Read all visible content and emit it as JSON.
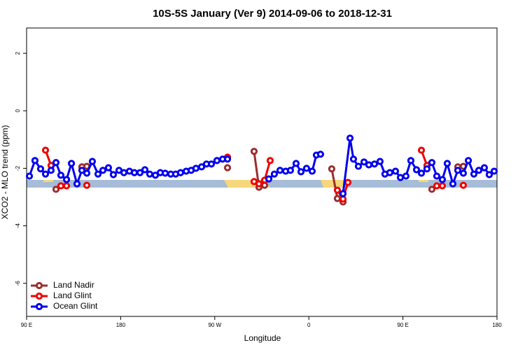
{
  "chart_data": {
    "type": "line",
    "title": "10S-5S January (Ver 9)   2014-09-06 to 2018-12-31",
    "xlabel": "Longitude",
    "ylabel": "XCO2 - MLO trend (ppm)",
    "xlim": [
      90,
      540
    ],
    "ylim": [
      -7.15,
      2.88
    ],
    "xticks": [
      {
        "value": 90,
        "label": "90 E"
      },
      {
        "value": 180,
        "label": "180"
      },
      {
        "value": 270,
        "label": "90 W"
      },
      {
        "value": 360,
        "label": "0"
      },
      {
        "value": 450,
        "label": "90 E"
      },
      {
        "value": 540,
        "label": "180"
      }
    ],
    "yticks": [
      -6,
      -4,
      -2,
      0,
      2
    ],
    "legend": "bottom-left",
    "series": [
      {
        "name": "Land Nadir",
        "color": "#9b2d2d",
        "x": [
          118.1,
          null,
          142.9,
          147.6,
          null,
          282.2,
          null,
          307.6,
          312.3,
          317.7,
          null,
          381.9,
          387.3,
          392.7,
          null,
          477.7,
          null,
          502.5,
          507.8
        ],
        "values": [
          -2.73,
          null,
          -1.95,
          -1.93,
          null,
          -1.98,
          null,
          -1.41,
          -2.66,
          -2.59,
          null,
          -2.02,
          -3.05,
          -3.17,
          null,
          -2.73,
          null,
          -1.95,
          -1.93
        ]
      },
      {
        "name": "Land Glint",
        "color": "#ee0000",
        "x": [
          108.1,
          113.4,
          null,
          122.8,
          128.2,
          null,
          147.6,
          null,
          282.2,
          null,
          307.6,
          312.3,
          317.7,
          323.0,
          null,
          387.3,
          392.7,
          397.4,
          null,
          467.7,
          473.0,
          null,
          482.4,
          487.7,
          null,
          507.8
        ],
        "values": [
          -1.37,
          -1.9,
          null,
          -2.61,
          -2.61,
          null,
          -2.59,
          null,
          -1.61,
          null,
          -2.46,
          -2.54,
          -2.41,
          -1.73,
          null,
          -2.76,
          -3.07,
          -2.49,
          null,
          -1.37,
          -1.9,
          null,
          -2.61,
          -2.61,
          null,
          -2.59
        ]
      },
      {
        "name": "Ocean Glint",
        "color": "#0000ee",
        "x": [
          92.7,
          98.0,
          103.4,
          108.1,
          113.4,
          118.1,
          122.8,
          128.2,
          132.9,
          138.2,
          142.9,
          147.6,
          152.9,
          158.3,
          163.0,
          168.3,
          173.0,
          178.4,
          183.1,
          188.4,
          193.1,
          198.5,
          203.2,
          207.8,
          213.2,
          217.9,
          222.6,
          227.9,
          232.6,
          237.3,
          242.7,
          247.4,
          252.0,
          257.4,
          262.1,
          266.8,
          272.1,
          277.5,
          282.2,
          null,
          321.7,
          327.0,
          332.4,
          337.8,
          342.4,
          347.8,
          352.5,
          357.8,
          363.2,
          367.2,
          371.2,
          null,
          392.7,
          399.4,
          402.7,
          407.4,
          412.8,
          417.4,
          422.8,
          428.1,
          432.8,
          437.5,
          442.9,
          447.6,
          452.9,
          457.6,
          463.0,
          467.7,
          473.0,
          477.7,
          482.4,
          487.7,
          492.4,
          497.8,
          502.5,
          507.8,
          512.6,
          517.9,
          522.6,
          527.9,
          532.6,
          537.3
        ],
        "values": [
          -2.27,
          -1.73,
          -2.02,
          -2.2,
          -2.07,
          -1.8,
          -2.24,
          -2.39,
          -1.83,
          -2.54,
          -2.07,
          -2.17,
          -1.76,
          -2.2,
          -2.07,
          -1.98,
          -2.22,
          -2.07,
          -2.15,
          -2.1,
          -2.15,
          -2.15,
          -2.05,
          -2.2,
          -2.24,
          -2.15,
          -2.17,
          -2.2,
          -2.2,
          -2.15,
          -2.1,
          -2.07,
          -2.0,
          -1.95,
          -1.85,
          -1.85,
          -1.73,
          -1.68,
          -1.68,
          null,
          -2.37,
          -2.2,
          -2.07,
          -2.1,
          -2.07,
          -1.83,
          -2.12,
          -2.0,
          -2.1,
          -1.54,
          -1.51,
          null,
          -2.88,
          -0.95,
          -1.68,
          -1.93,
          -1.78,
          -1.88,
          -1.85,
          -1.76,
          -2.2,
          -2.15,
          -2.1,
          -2.32,
          -2.27,
          -1.73,
          -2.05,
          -2.17,
          -2.02,
          -1.8,
          -2.27,
          -2.39,
          -1.83,
          -2.54,
          -2.07,
          -2.17,
          -1.73,
          -2.2,
          -2.07,
          -1.98,
          -2.22,
          -2.1
        ]
      }
    ]
  }
}
